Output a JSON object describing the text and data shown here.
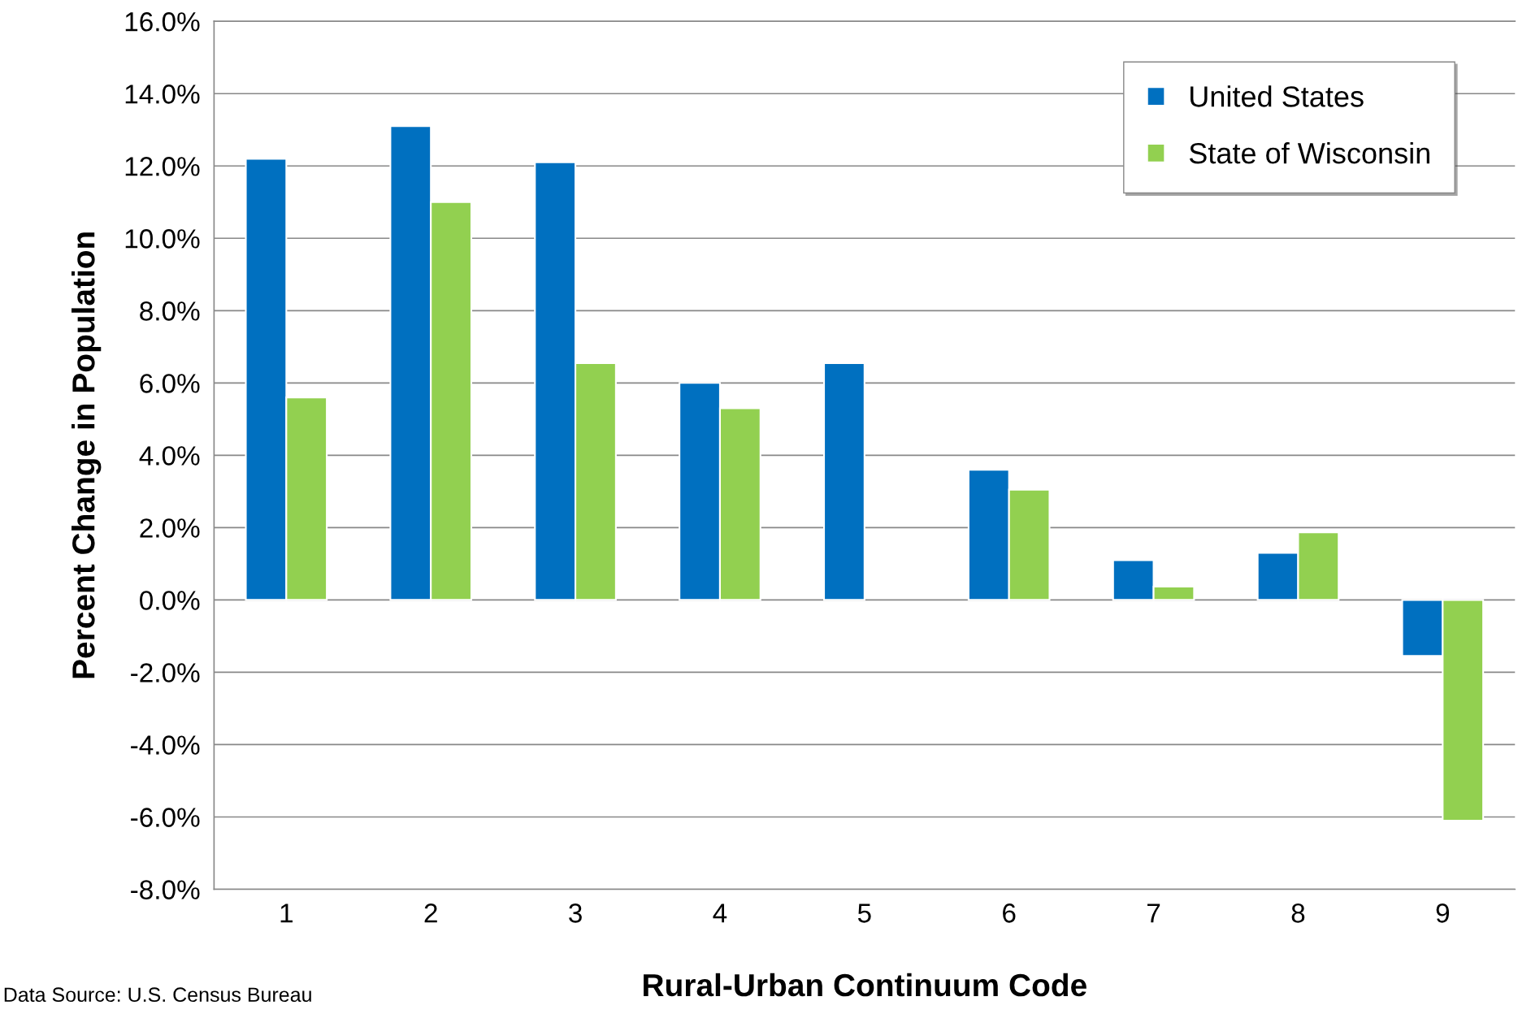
{
  "chart_data": {
    "type": "bar",
    "xlabel": "Rural-Urban Continuum Code",
    "ylabel": "Percent Change in Population",
    "categories": [
      "1",
      "2",
      "3",
      "4",
      "5",
      "6",
      "7",
      "8",
      "9"
    ],
    "series": [
      {
        "name": "United States",
        "color": "#0070c0",
        "values": [
          12.2,
          13.1,
          12.1,
          6.0,
          6.55,
          3.6,
          1.1,
          1.3,
          -1.55
        ]
      },
      {
        "name": "State of Wisconsin",
        "color": "#92d050",
        "values": [
          5.6,
          11.0,
          6.55,
          5.3,
          null,
          3.05,
          0.37,
          1.87,
          -6.1
        ]
      }
    ],
    "ylim": [
      -8,
      16
    ],
    "yticks": [
      {
        "value": -8,
        "label": "-8.0%"
      },
      {
        "value": -6,
        "label": "-6.0%"
      },
      {
        "value": -4,
        "label": "-4.0%"
      },
      {
        "value": -2,
        "label": "-2.0%"
      },
      {
        "value": 0,
        "label": "0.0%"
      },
      {
        "value": 2,
        "label": "2.0%"
      },
      {
        "value": 4,
        "label": "4.0%"
      },
      {
        "value": 6,
        "label": "6.0%"
      },
      {
        "value": 8,
        "label": "8.0%"
      },
      {
        "value": 10,
        "label": "10.0%"
      },
      {
        "value": 12,
        "label": "12.0%"
      },
      {
        "value": 14,
        "label": "14.0%"
      },
      {
        "value": 16,
        "label": "16.0%"
      }
    ],
    "grid": "y",
    "legend": "top right",
    "annotations": [
      "Data Source: U.S. Census Bureau"
    ]
  }
}
